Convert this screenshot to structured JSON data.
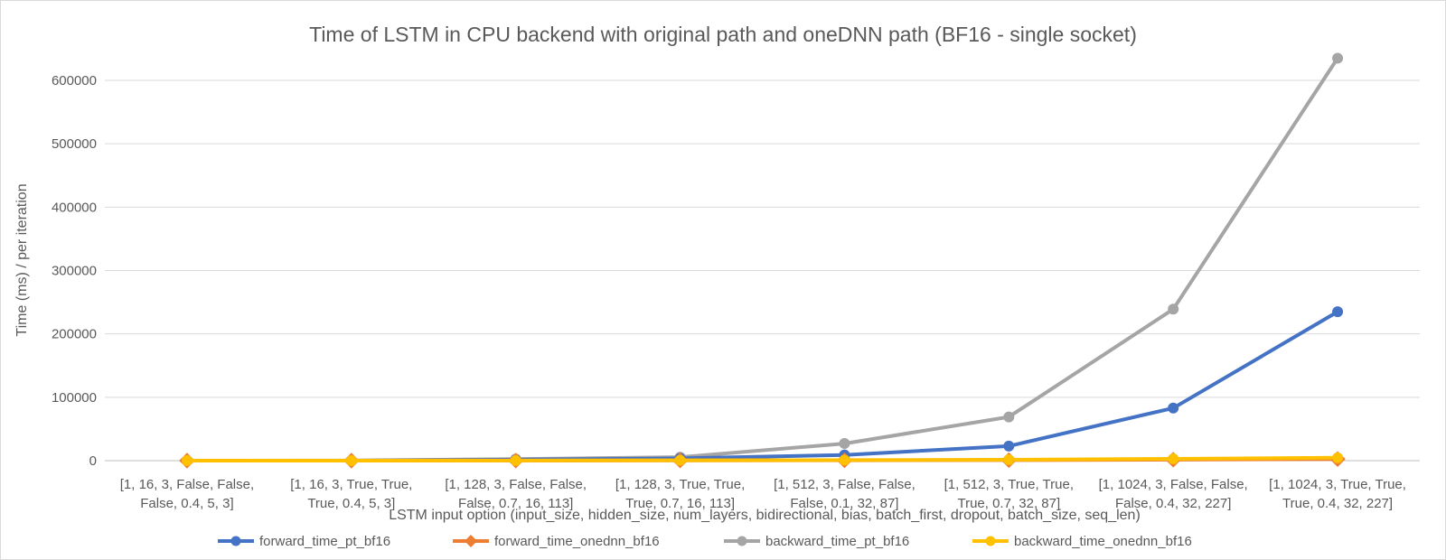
{
  "chart_data": {
    "type": "line",
    "title": "Time of LSTM in CPU backend with original path and oneDNN path (BF16 - single socket)",
    "xlabel": "LSTM input option (input_size, hidden_size, num_layers, bidirectional, bias, batch_first, dropout, batch_size, seq_len)",
    "ylabel": "Time (ms) / per iteration",
    "ylim": [
      0,
      600000
    ],
    "yticks": [
      0,
      100000,
      200000,
      300000,
      400000,
      500000,
      600000
    ],
    "grid": true,
    "legend_position": "bottom",
    "categories": [
      [
        "[1, 16, 3, False, False,",
        "False, 0.4, 5, 3]"
      ],
      [
        "[1, 16, 3, True, True,",
        "True, 0.4, 5, 3]"
      ],
      [
        "[1, 128, 3, False, False,",
        "False, 0.7, 16, 113]"
      ],
      [
        "[1, 128, 3, True, True,",
        "True, 0.7, 16, 113]"
      ],
      [
        "[1, 512, 3, False, False,",
        "False, 0.1, 32, 87]"
      ],
      [
        "[1, 512, 3, True, True,",
        "True, 0.7, 32, 87]"
      ],
      [
        "[1, 1024, 3, False, False,",
        "False, 0.4, 32, 227]"
      ],
      [
        "[1, 1024, 3, True, True,",
        "True, 0.4, 32, 227]"
      ]
    ],
    "series": [
      {
        "name": "forward_time_pt_bf16",
        "color": "#4472c4",
        "marker": "circle",
        "values": [
          20,
          50,
          1500,
          3500,
          9000,
          23000,
          83000,
          235000
        ]
      },
      {
        "name": "forward_time_onednn_bf16",
        "color": "#ed7d31",
        "marker": "diamond",
        "values": [
          5,
          10,
          100,
          250,
          500,
          800,
          1500,
          2500
        ]
      },
      {
        "name": "backward_time_pt_bf16",
        "color": "#a5a5a5",
        "marker": "circle",
        "values": [
          50,
          100,
          2500,
          5500,
          27000,
          69000,
          239000,
          635000
        ]
      },
      {
        "name": "backward_time_onednn_bf16",
        "color": "#ffc000",
        "marker": "circle",
        "values": [
          10,
          20,
          200,
          500,
          900,
          1400,
          2800,
          4500
        ]
      }
    ]
  }
}
